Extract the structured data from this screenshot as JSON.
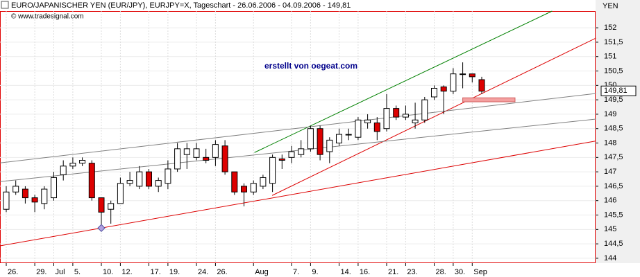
{
  "chart_data": {
    "type": "candlestick",
    "title": "EURO/JAPANISCHER YEN (EUR/JPY), EURJPY=X, Tageschart - 26.06.2006 - 04.09.2006 - 149,81",
    "subtitle": "© www.tradesignal.com",
    "annotation": "erstellt von oegeat.com",
    "y_label": "YEN",
    "categories": [
      "26.",
      null,
      null,
      "29.",
      null,
      "Jul",
      null,
      "5.",
      null,
      null,
      "10.",
      null,
      "12.",
      null,
      null,
      "17.",
      null,
      "19.",
      null,
      null,
      "24.",
      null,
      "26.",
      null,
      null,
      null,
      "Aug",
      null,
      null,
      null,
      "7.",
      null,
      "9.",
      null,
      null,
      "14.",
      null,
      "16.",
      null,
      null,
      "21.",
      null,
      "23.",
      null,
      null,
      "28.",
      null,
      "30.",
      null,
      "Sep",
      null
    ],
    "open": [
      145.7,
      146.3,
      146.4,
      146.1,
      145.9,
      146.1,
      146.9,
      147.2,
      147.3,
      147.3,
      146.1,
      145.7,
      145.9,
      146.6,
      146.5,
      147,
      146.5,
      146.6,
      147.1,
      147.6,
      147.5,
      147.5,
      147.5,
      147.9,
      147,
      146.5,
      146.3,
      146.5,
      146.6,
      147.45,
      147.5,
      147.6,
      147.8,
      148.5,
      147.7,
      148,
      148.3,
      148.2,
      148.7,
      148.7,
      148.5,
      149.2,
      148.9,
      148.7,
      148.8,
      149.6,
      149.95,
      149.8,
      150.4,
      150.4,
      150.2
    ],
    "high": [
      146.5,
      146.7,
      146.5,
      146.2,
      146.5,
      147,
      147.4,
      147.5,
      147.5,
      147.4,
      146.1,
      146,
      146.8,
      147,
      147.2,
      147.1,
      146.8,
      147.4,
      148,
      148,
      148,
      147.8,
      148.1,
      148.1,
      147,
      146.6,
      146.7,
      146.9,
      147.6,
      147.6,
      147.9,
      148.1,
      148.6,
      148.6,
      148.2,
      148.5,
      148.5,
      148.9,
      149,
      148.9,
      149.7,
      149.3,
      149.3,
      149.4,
      149.6,
      150,
      150,
      150.6,
      150.8,
      150.4,
      150.3
    ],
    "low": [
      145.6,
      146.2,
      145.9,
      145.6,
      145.7,
      146,
      146.7,
      147.1,
      147.2,
      146,
      145,
      145.2,
      145.9,
      146.5,
      146.4,
      146.4,
      146.3,
      146.4,
      147,
      147.1,
      147.4,
      147.3,
      147.2,
      146.9,
      146.2,
      145.8,
      146.2,
      146.4,
      146.3,
      147.1,
      147.3,
      147.5,
      147.7,
      147.4,
      147.3,
      147.9,
      148.1,
      148.1,
      148.5,
      148.1,
      148.4,
      148.8,
      148.8,
      148.5,
      148.7,
      149.5,
      149,
      149.7,
      149.9,
      150.1,
      149.7
    ],
    "close": [
      146.3,
      146.5,
      146.1,
      145.95,
      146.4,
      146.8,
      147.2,
      147.3,
      147.4,
      146.1,
      145.6,
      145.9,
      146.6,
      146.7,
      147,
      146.5,
      146.7,
      147.1,
      147.8,
      147.8,
      147.8,
      147.4,
      147.95,
      147,
      146.3,
      146.3,
      146.6,
      146.8,
      147.5,
      147.4,
      147.7,
      147.8,
      148.5,
      147.6,
      148.1,
      148.3,
      148.3,
      148.8,
      148.8,
      148.4,
      149.2,
      148.9,
      149,
      148.8,
      149.5,
      149.9,
      149.8,
      150.4,
      150.4,
      150.3,
      149.8
    ],
    "up_color": "#ffffff",
    "down_color": "#dd0000",
    "ylim": [
      143.83,
      152.58
    ],
    "yticks": [
      {
        "value": 144,
        "label": "144"
      },
      {
        "value": 144.5,
        "label": "144,5"
      },
      {
        "value": 145,
        "label": "145"
      },
      {
        "value": 145.5,
        "label": "145,5"
      },
      {
        "value": 146,
        "label": "146"
      },
      {
        "value": 146.5,
        "label": "146,5"
      },
      {
        "value": 147,
        "label": "147"
      },
      {
        "value": 147.5,
        "label": "147,5"
      },
      {
        "value": 148,
        "label": "148"
      },
      {
        "value": 148.5,
        "label": "148,5"
      },
      {
        "value": 149,
        "label": "149"
      },
      {
        "value": 149.5,
        "label": "149,5"
      },
      {
        "value": 150,
        "label": "150"
      },
      {
        "value": 150.5,
        "label": "150,5"
      },
      {
        "value": 151,
        "label": "151"
      },
      {
        "value": 151.5,
        "label": "151,5"
      },
      {
        "value": 152,
        "label": "152"
      }
    ],
    "last_price": {
      "value": 149.81,
      "label": "149,81"
    },
    "trendlines": [
      {
        "color": "#008000",
        "from": [
          26.1,
          147.67
        ],
        "to": [
          57.4,
          152.58
        ]
      },
      {
        "color": "#dd0000",
        "from": [
          27.96,
          146.18
        ],
        "to": [
          62,
          151.64
        ]
      },
      {
        "color": "#dd0000",
        "from": [
          -0.66,
          144.43
        ],
        "to": [
          62,
          148.07
        ]
      },
      {
        "color": "#808080",
        "from": [
          -0.66,
          147.31
        ],
        "to": [
          62,
          149.72
        ]
      },
      {
        "color": "#808080",
        "from": [
          -0.66,
          146.66
        ],
        "to": [
          62,
          148.83
        ]
      }
    ],
    "zone": {
      "color": "#f4a0a0",
      "from": [
        48,
        149.57
      ],
      "to": [
        53.5,
        149.43
      ]
    },
    "marker": {
      "color": "#b0a0e0",
      "at": [
        10,
        145.05
      ]
    }
  }
}
